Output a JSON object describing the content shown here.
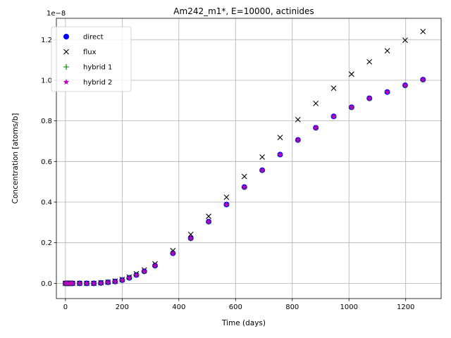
{
  "chart_data": {
    "type": "scatter",
    "title": "Am242_m1*, E=10000, actinides",
    "xlabel": "Time (days)",
    "ylabel": "Concentration [atoms/b]",
    "offset_text": "1e−8",
    "xlim": [
      -32,
      1325
    ],
    "ylim": [
      -0.075,
      1.305
    ],
    "x_ticks": [
      0,
      200,
      400,
      600,
      800,
      1000,
      1200
    ],
    "y_ticks": [
      0.0,
      0.2,
      0.4,
      0.6,
      0.8,
      1.0,
      1.2
    ],
    "x_tick_labels": [
      "0",
      "200",
      "400",
      "600",
      "800",
      "1000",
      "1200"
    ],
    "y_tick_labels": [
      "0.0",
      "0.2",
      "0.4",
      "0.6",
      "0.8",
      "1.0",
      "1.2"
    ],
    "grid": true,
    "legend_position": "upper-left",
    "x": [
      0,
      6,
      12,
      18,
      25,
      50,
      75,
      100,
      125,
      150,
      175,
      200,
      225,
      250,
      278,
      316,
      379,
      442,
      505,
      568,
      631,
      694,
      757,
      820,
      883,
      946,
      1009,
      1072,
      1135,
      1198,
      1261
    ],
    "series": [
      {
        "name": "direct",
        "marker": "circle",
        "color": "#0000ff",
        "values": [
          0,
          0,
          0,
          0,
          0,
          0,
          0,
          0,
          0.002,
          0.005,
          0.009,
          0.016,
          0.027,
          0.041,
          0.059,
          0.087,
          0.148,
          0.222,
          0.304,
          0.388,
          0.474,
          0.557,
          0.634,
          0.706,
          0.766,
          0.822,
          0.867,
          0.911,
          0.942,
          0.975,
          1.003
        ]
      },
      {
        "name": "flux",
        "marker": "x",
        "color": "#000000",
        "values": [
          0,
          0,
          0,
          0,
          0,
          0,
          0,
          0,
          0.003,
          0.006,
          0.011,
          0.019,
          0.031,
          0.047,
          0.066,
          0.096,
          0.161,
          0.241,
          0.33,
          0.424,
          0.526,
          0.622,
          0.718,
          0.806,
          0.886,
          0.961,
          1.03,
          1.091,
          1.145,
          1.197,
          1.24
        ]
      },
      {
        "name": "hybrid 1",
        "marker": "plus",
        "color": "#008000",
        "values": [
          0,
          0,
          0,
          0,
          0,
          0,
          0,
          0,
          0.002,
          0.005,
          0.009,
          0.016,
          0.027,
          0.041,
          0.059,
          0.087,
          0.148,
          0.222,
          0.304,
          0.388,
          0.474,
          0.557,
          0.634,
          0.706,
          0.766,
          0.822,
          0.867,
          0.911,
          0.942,
          0.975,
          1.003
        ]
      },
      {
        "name": "hybrid 2",
        "marker": "star",
        "color": "#bf00bf",
        "values": [
          0,
          0,
          0,
          0,
          0,
          0,
          0,
          0,
          0.002,
          0.005,
          0.009,
          0.016,
          0.027,
          0.041,
          0.059,
          0.087,
          0.148,
          0.222,
          0.304,
          0.388,
          0.474,
          0.557,
          0.634,
          0.706,
          0.766,
          0.822,
          0.867,
          0.911,
          0.942,
          0.975,
          1.003
        ]
      }
    ]
  }
}
